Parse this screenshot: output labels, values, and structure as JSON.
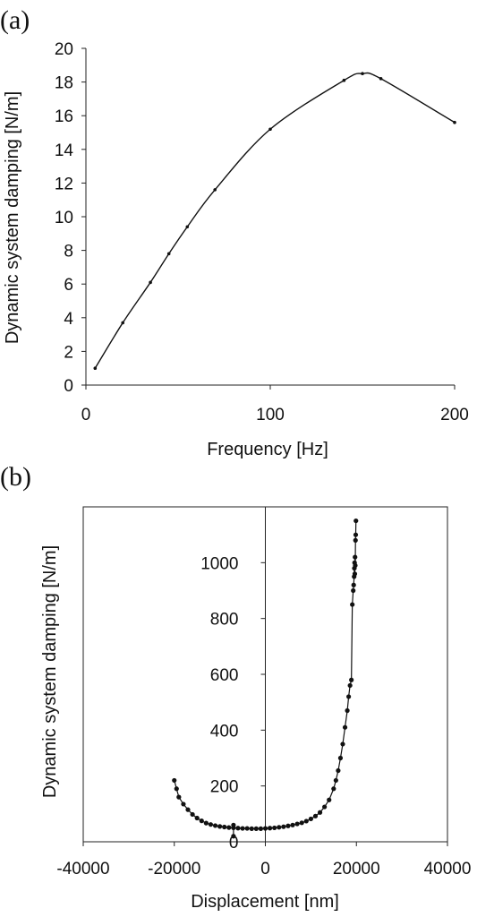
{
  "chart_data": [
    {
      "type": "line",
      "panel_label": "(a)",
      "xlabel": "Frequency [Hz]",
      "ylabel": "Dynamic system  damping [N/m]",
      "xlim": [
        0,
        200
      ],
      "ylim": [
        0,
        20
      ],
      "xticks": [
        0,
        100,
        200
      ],
      "yticks": [
        0,
        2,
        4,
        6,
        8,
        10,
        12,
        14,
        16,
        18,
        20
      ],
      "grid": false,
      "legend": "none",
      "series": [
        {
          "x": [
            5,
            20,
            35,
            45,
            55,
            70,
            100,
            140,
            150,
            160,
            200
          ],
          "y": [
            1.0,
            3.7,
            6.1,
            7.8,
            9.4,
            11.6,
            15.2,
            18.1,
            18.5,
            18.2,
            15.6
          ]
        }
      ]
    },
    {
      "type": "scatter",
      "panel_label": "(b)",
      "xlabel": "Displacement [nm]",
      "ylabel": "Dynamic system  damping [N/m]",
      "xlim": [
        -40000,
        40000
      ],
      "ylim": [
        0,
        1200
      ],
      "xticks": [
        -40000,
        -20000,
        0,
        20000,
        40000
      ],
      "yticks": [
        0,
        200,
        400,
        600,
        800,
        1000
      ],
      "grid": false,
      "legend": "none",
      "series": [
        {
          "x": [
            -20000,
            -19500,
            -19000,
            -18000,
            -17000,
            -16000,
            -15000,
            -14000,
            -13000,
            -12000,
            -11000,
            -10000,
            -9000,
            -8000,
            -7000,
            -6000,
            -5000,
            -4000,
            -3000,
            -2000,
            -1000,
            0,
            1000,
            2000,
            3000,
            4000,
            5000,
            6000,
            7000,
            8000,
            9000,
            10000,
            11000,
            12000,
            13000,
            14000,
            15000,
            15500,
            16000,
            16500,
            17000,
            17500,
            18000,
            18300,
            18600,
            18900,
            19100,
            19300,
            19400,
            19500,
            19550,
            19600,
            19650,
            19700,
            19750,
            19800,
            19850,
            19900
          ],
          "y": [
            220,
            190,
            160,
            135,
            115,
            98,
            85,
            75,
            67,
            62,
            58,
            55,
            53,
            51,
            50,
            49,
            48,
            48,
            47,
            47,
            47,
            48,
            49,
            50,
            52,
            54,
            57,
            60,
            64,
            68,
            74,
            82,
            92,
            105,
            125,
            150,
            190,
            220,
            255,
            300,
            350,
            410,
            470,
            520,
            560,
            580,
            850,
            900,
            920,
            950,
            980,
            1000,
            960,
            1020,
            990,
            1080,
            1100,
            1150
          ]
        },
        {
          "x": [
            -7000,
            -7000
          ],
          "y": [
            20,
            60
          ]
        }
      ]
    }
  ]
}
